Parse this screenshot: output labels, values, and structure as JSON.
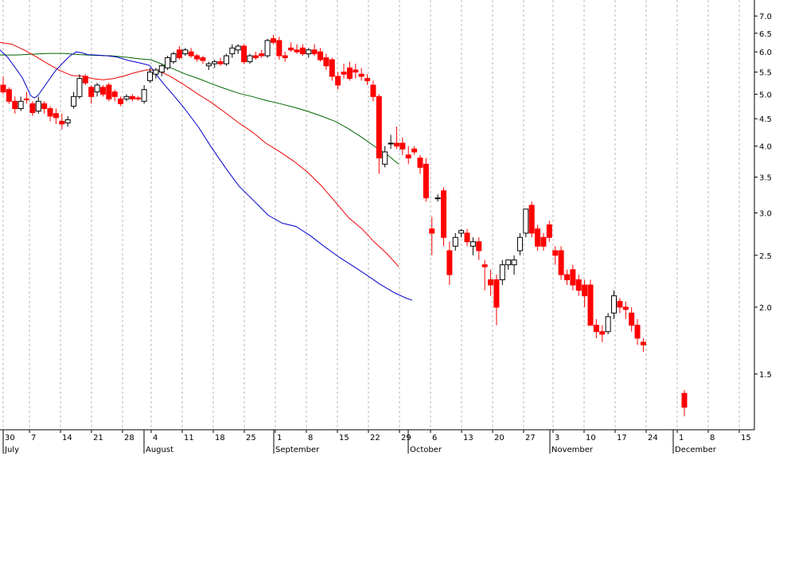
{
  "chart_data": {
    "type": "candlestick",
    "y_scale": "log",
    "ylim": [
      1.18,
      7.5
    ],
    "y_ticks": [
      "7.0",
      "6.5",
      "6.0",
      "5.5",
      "5.0",
      "4.5",
      "4.0",
      "3.5",
      "3.0",
      "2.5",
      "2.0",
      "1.5"
    ],
    "x_day_ticks": [
      "30",
      "7",
      "14",
      "21",
      "28",
      "4",
      "11",
      "18",
      "25",
      "1",
      "8",
      "15",
      "22",
      "29",
      "6",
      "13",
      "20",
      "27",
      "3",
      "10",
      "17",
      "24",
      "1",
      "8",
      "15"
    ],
    "x_month_labels": [
      "July",
      "August",
      "September",
      "October",
      "November",
      "December"
    ],
    "grid": "vertical-dashed",
    "colors": {
      "up": "#ffffff",
      "down": "#ff0000",
      "ma_short": "#0000cc",
      "ma_medium": "#ee0000",
      "ma_long": "#006600",
      "grid": "#b4b4b4"
    },
    "candles": [
      [
        5.2,
        5.4,
        5.0,
        5.05
      ],
      [
        5.1,
        5.15,
        4.8,
        4.85
      ],
      [
        4.85,
        4.95,
        4.6,
        4.7
      ],
      [
        4.7,
        4.95,
        4.65,
        4.85
      ],
      [
        4.9,
        5.05,
        4.8,
        4.88
      ],
      [
        4.8,
        4.85,
        4.55,
        4.62
      ],
      [
        4.65,
        4.95,
        4.6,
        4.85
      ],
      [
        4.8,
        4.85,
        4.6,
        4.7
      ],
      [
        4.7,
        4.75,
        4.45,
        4.55
      ],
      [
        4.6,
        4.7,
        4.4,
        4.52
      ],
      [
        4.45,
        4.6,
        4.3,
        4.4
      ],
      [
        4.42,
        4.55,
        4.35,
        4.48
      ],
      [
        4.75,
        5.05,
        4.7,
        4.95
      ],
      [
        4.95,
        5.45,
        4.9,
        5.35
      ],
      [
        5.4,
        5.45,
        5.2,
        5.25
      ],
      [
        5.15,
        5.2,
        4.8,
        4.95
      ],
      [
        5.05,
        5.25,
        4.95,
        5.2
      ],
      [
        5.15,
        5.2,
        4.95,
        5.0
      ],
      [
        5.2,
        5.25,
        4.85,
        4.9
      ],
      [
        5.05,
        5.1,
        4.85,
        4.95
      ],
      [
        4.9,
        4.95,
        4.75,
        4.8
      ],
      [
        4.9,
        5.0,
        4.85,
        4.95
      ],
      [
        4.95,
        5.0,
        4.85,
        4.9
      ],
      [
        4.92,
        4.96,
        4.86,
        4.9
      ],
      [
        4.85,
        5.2,
        4.8,
        5.1
      ],
      [
        5.3,
        5.6,
        5.25,
        5.5
      ],
      [
        5.45,
        5.6,
        5.35,
        5.55
      ],
      [
        5.5,
        5.7,
        5.4,
        5.65
      ],
      [
        5.6,
        5.9,
        5.55,
        5.85
      ],
      [
        5.75,
        6.0,
        5.7,
        5.95
      ],
      [
        6.05,
        6.15,
        5.8,
        5.85
      ],
      [
        5.95,
        6.1,
        5.9,
        6.05
      ],
      [
        6.0,
        6.1,
        5.85,
        5.9
      ],
      [
        5.9,
        5.95,
        5.75,
        5.82
      ],
      [
        5.85,
        5.9,
        5.7,
        5.78
      ],
      [
        5.65,
        5.75,
        5.55,
        5.7
      ],
      [
        5.7,
        5.8,
        5.6,
        5.75
      ],
      [
        5.75,
        5.85,
        5.65,
        5.7
      ],
      [
        5.7,
        5.95,
        5.65,
        5.9
      ],
      [
        5.95,
        6.2,
        5.85,
        6.1
      ],
      [
        6.05,
        6.2,
        5.95,
        6.15
      ],
      [
        6.15,
        6.2,
        5.7,
        5.75
      ],
      [
        5.75,
        5.95,
        5.7,
        5.9
      ],
      [
        5.9,
        6.0,
        5.8,
        5.85
      ],
      [
        5.95,
        6.05,
        5.85,
        5.9
      ],
      [
        5.9,
        6.35,
        5.85,
        6.3
      ],
      [
        6.35,
        6.45,
        6.2,
        6.25
      ],
      [
        6.3,
        6.4,
        5.8,
        5.9
      ],
      [
        5.9,
        6.0,
        5.75,
        5.85
      ],
      [
        6.1,
        6.25,
        6.0,
        6.05
      ],
      [
        6.05,
        6.2,
        5.95,
        6.0
      ],
      [
        6.1,
        6.2,
        5.9,
        5.95
      ],
      [
        5.95,
        6.1,
        5.85,
        6.05
      ],
      [
        6.05,
        6.2,
        5.9,
        5.95
      ],
      [
        6.0,
        6.1,
        5.75,
        5.8
      ],
      [
        5.85,
        5.95,
        5.55,
        5.65
      ],
      [
        5.8,
        5.85,
        5.3,
        5.4
      ],
      [
        5.4,
        5.5,
        5.1,
        5.2
      ],
      [
        5.5,
        5.7,
        5.35,
        5.45
      ],
      [
        5.6,
        5.75,
        5.3,
        5.35
      ],
      [
        5.55,
        5.7,
        5.35,
        5.5
      ],
      [
        5.45,
        5.6,
        5.3,
        5.4
      ],
      [
        5.35,
        5.45,
        5.2,
        5.3
      ],
      [
        5.2,
        5.3,
        4.85,
        4.95
      ],
      [
        4.95,
        5.0,
        3.55,
        3.8
      ],
      [
        3.7,
        4.0,
        3.65,
        3.9
      ],
      [
        4.05,
        4.2,
        3.95,
        4.05
      ],
      [
        4.05,
        4.35,
        3.95,
        4.0
      ],
      [
        4.05,
        4.15,
        3.85,
        3.95
      ],
      [
        3.85,
        4.0,
        3.7,
        3.8
      ],
      [
        3.95,
        4.0,
        3.85,
        3.9
      ],
      [
        3.8,
        3.85,
        3.55,
        3.65
      ],
      [
        3.7,
        3.8,
        3.15,
        3.2
      ],
      [
        2.8,
        2.95,
        2.5,
        2.75
      ],
      [
        3.2,
        3.25,
        3.15,
        3.2
      ],
      [
        3.3,
        3.35,
        2.6,
        2.7
      ],
      [
        2.55,
        2.65,
        2.2,
        2.3
      ],
      [
        2.6,
        2.75,
        2.55,
        2.7
      ],
      [
        2.75,
        2.8,
        2.7,
        2.78
      ],
      [
        2.75,
        2.8,
        2.6,
        2.65
      ],
      [
        2.6,
        2.7,
        2.5,
        2.65
      ],
      [
        2.65,
        2.7,
        2.45,
        2.55
      ],
      [
        2.4,
        2.45,
        2.15,
        2.38
      ],
      [
        2.25,
        2.35,
        2.1,
        2.2
      ],
      [
        2.25,
        2.3,
        1.85,
        2.0
      ],
      [
        2.25,
        2.45,
        2.2,
        2.4
      ],
      [
        2.4,
        2.45,
        2.35,
        2.45
      ],
      [
        2.4,
        2.5,
        2.3,
        2.45
      ],
      [
        2.55,
        2.75,
        2.5,
        2.7
      ],
      [
        2.75,
        3.05,
        2.7,
        3.05
      ],
      [
        3.1,
        3.15,
        2.7,
        2.75
      ],
      [
        2.8,
        2.85,
        2.55,
        2.6
      ],
      [
        2.7,
        2.75,
        2.55,
        2.6
      ],
      [
        2.85,
        2.9,
        2.65,
        2.7
      ],
      [
        2.55,
        2.6,
        2.4,
        2.5
      ],
      [
        2.55,
        2.6,
        2.25,
        2.3
      ],
      [
        2.3,
        2.35,
        2.2,
        2.25
      ],
      [
        2.35,
        2.4,
        2.15,
        2.2
      ],
      [
        2.25,
        2.3,
        2.1,
        2.15
      ],
      [
        2.2,
        2.25,
        2.0,
        2.1
      ],
      [
        2.2,
        2.25,
        1.9,
        1.85
      ],
      [
        1.85,
        1.9,
        1.75,
        1.8
      ],
      [
        1.8,
        1.85,
        1.72,
        1.78
      ],
      [
        1.8,
        1.95,
        1.78,
        1.92
      ],
      [
        1.95,
        2.15,
        1.9,
        2.1
      ],
      [
        2.05,
        2.08,
        1.95,
        2.0
      ],
      [
        2.0,
        2.05,
        1.9,
        1.98
      ],
      [
        1.95,
        2.0,
        1.8,
        1.85
      ],
      [
        1.85,
        1.9,
        1.7,
        1.75
      ],
      [
        1.72,
        1.75,
        1.65,
        1.7
      ],
      [
        1.38,
        1.4,
        1.25,
        1.3
      ]
    ],
    "ma_short": [
      [
        0,
        6.05
      ],
      [
        10,
        5.85
      ],
      [
        20,
        5.58
      ],
      [
        28,
        5.37
      ],
      [
        33,
        5.18
      ],
      [
        36,
        5.07
      ],
      [
        38,
        4.98
      ],
      [
        43,
        4.92
      ],
      [
        48,
        4.98
      ],
      [
        60,
        5.28
      ],
      [
        70,
        5.54
      ],
      [
        80,
        5.74
      ],
      [
        88,
        5.9
      ],
      [
        96,
        6.0
      ],
      [
        104,
        5.97
      ],
      [
        110,
        5.93
      ],
      [
        120,
        5.92
      ],
      [
        135,
        5.9
      ],
      [
        147,
        5.87
      ],
      [
        162,
        5.78
      ],
      [
        176,
        5.72
      ],
      [
        188,
        5.66
      ],
      [
        196,
        5.45
      ],
      [
        206,
        5.22
      ],
      [
        217,
        5.0
      ],
      [
        232,
        4.7
      ],
      [
        249,
        4.35
      ],
      [
        266,
        3.97
      ],
      [
        283,
        3.65
      ],
      [
        300,
        3.37
      ],
      [
        320,
        3.15
      ],
      [
        337,
        2.97
      ],
      [
        355,
        2.87
      ],
      [
        372,
        2.83
      ],
      [
        390,
        2.72
      ],
      [
        407,
        2.6
      ],
      [
        426,
        2.48
      ],
      [
        443,
        2.39
      ],
      [
        460,
        2.3
      ],
      [
        477,
        2.21
      ],
      [
        495,
        2.13
      ],
      [
        510,
        2.08
      ],
      [
        518,
        2.06
      ]
    ],
    "ma_medium": [
      [
        0,
        6.25
      ],
      [
        15,
        6.2
      ],
      [
        30,
        6.05
      ],
      [
        45,
        5.88
      ],
      [
        60,
        5.7
      ],
      [
        75,
        5.54
      ],
      [
        90,
        5.42
      ],
      [
        105,
        5.4
      ],
      [
        115,
        5.35
      ],
      [
        130,
        5.32
      ],
      [
        143,
        5.35
      ],
      [
        156,
        5.41
      ],
      [
        170,
        5.49
      ],
      [
        184,
        5.55
      ],
      [
        198,
        5.54
      ],
      [
        214,
        5.4
      ],
      [
        232,
        5.2
      ],
      [
        249,
        5.0
      ],
      [
        266,
        4.82
      ],
      [
        283,
        4.62
      ],
      [
        300,
        4.42
      ],
      [
        317,
        4.25
      ],
      [
        334,
        4.05
      ],
      [
        352,
        3.9
      ],
      [
        369,
        3.75
      ],
      [
        386,
        3.58
      ],
      [
        404,
        3.37
      ],
      [
        421,
        3.15
      ],
      [
        438,
        2.94
      ],
      [
        455,
        2.8
      ],
      [
        470,
        2.65
      ],
      [
        486,
        2.52
      ],
      [
        501,
        2.38
      ]
    ],
    "ma_long": [
      [
        0,
        5.92
      ],
      [
        20,
        5.92
      ],
      [
        40,
        5.94
      ],
      [
        60,
        5.96
      ],
      [
        80,
        5.96
      ],
      [
        100,
        5.93
      ],
      [
        120,
        5.91
      ],
      [
        140,
        5.9
      ],
      [
        160,
        5.86
      ],
      [
        176,
        5.82
      ],
      [
        190,
        5.8
      ],
      [
        200,
        5.72
      ],
      [
        215,
        5.6
      ],
      [
        232,
        5.46
      ],
      [
        249,
        5.35
      ],
      [
        266,
        5.23
      ],
      [
        283,
        5.12
      ],
      [
        300,
        5.02
      ],
      [
        317,
        4.95
      ],
      [
        334,
        4.87
      ],
      [
        352,
        4.8
      ],
      [
        369,
        4.73
      ],
      [
        386,
        4.65
      ],
      [
        404,
        4.55
      ],
      [
        421,
        4.45
      ],
      [
        438,
        4.31
      ],
      [
        455,
        4.15
      ],
      [
        470,
        4.0
      ],
      [
        486,
        3.86
      ],
      [
        501,
        3.7
      ]
    ]
  }
}
